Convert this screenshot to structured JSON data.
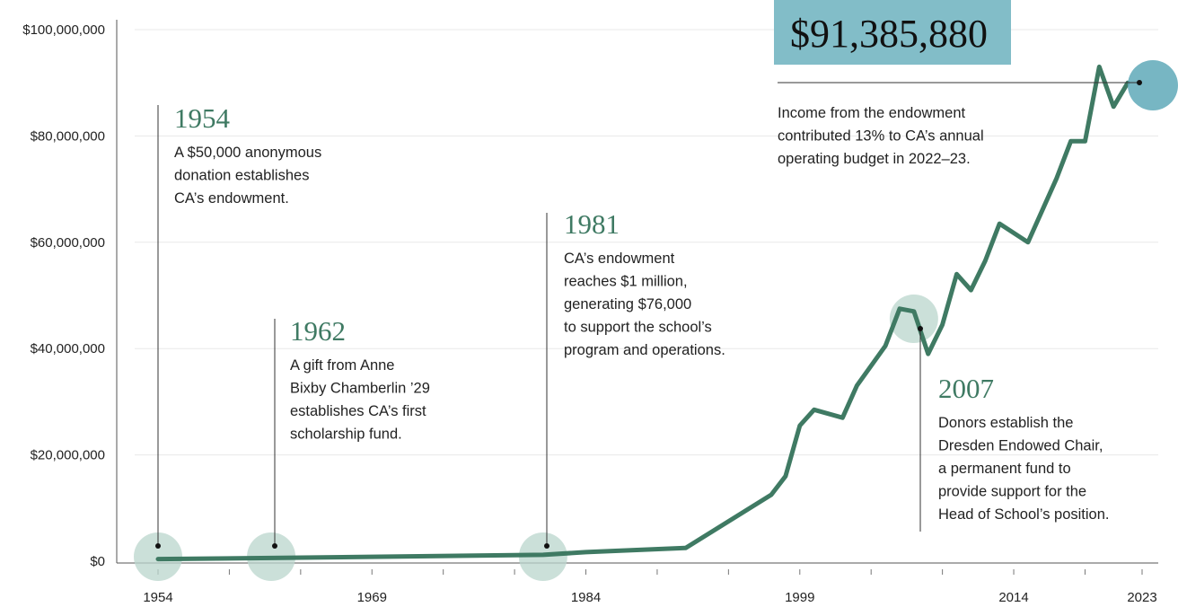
{
  "colors": {
    "line": "#3f7a63",
    "circle": "#b9d5cc",
    "highlight_box": "#82bdc8",
    "highlight_circle": "#5fa9b8",
    "axis": "#555555",
    "grid": "#e8e8e8"
  },
  "chart_data": {
    "type": "line",
    "title": "",
    "xlabel": "",
    "ylabel": "",
    "xlim": [
      1954,
      2023
    ],
    "ylim": [
      0,
      100000000
    ],
    "y_ticks": [
      {
        "value": 0,
        "label": "$0"
      },
      {
        "value": 20000000,
        "label": "$20,000,000"
      },
      {
        "value": 40000000,
        "label": "$40,000,000"
      },
      {
        "value": 60000000,
        "label": "$60,000,000"
      },
      {
        "value": 80000000,
        "label": "$80,000,000"
      },
      {
        "value": 100000000,
        "label": "$100,000,000"
      }
    ],
    "x_ticks": [
      {
        "value": 1954,
        "label": "1954"
      },
      {
        "value": 1969,
        "label": "1969"
      },
      {
        "value": 1984,
        "label": "1984"
      },
      {
        "value": 1999,
        "label": "1999"
      },
      {
        "value": 2014,
        "label": "2014"
      },
      {
        "value": 2023,
        "label": "2023"
      }
    ],
    "series": [
      {
        "points": [
          {
            "x": 1954,
            "y": 400000
          },
          {
            "x": 1962,
            "y": 600000
          },
          {
            "x": 1981,
            "y": 1200000
          },
          {
            "x": 1984,
            "y": 1700000
          },
          {
            "x": 1991,
            "y": 2500000
          },
          {
            "x": 1997,
            "y": 12500000
          },
          {
            "x": 1998,
            "y": 16000000
          },
          {
            "x": 1999,
            "y": 25500000
          },
          {
            "x": 2000,
            "y": 28500000
          },
          {
            "x": 2002,
            "y": 27000000
          },
          {
            "x": 2003,
            "y": 33000000
          },
          {
            "x": 2005,
            "y": 40500000
          },
          {
            "x": 2006,
            "y": 47500000
          },
          {
            "x": 2007,
            "y": 47000000
          },
          {
            "x": 2008,
            "y": 39000000
          },
          {
            "x": 2009,
            "y": 44500000
          },
          {
            "x": 2010,
            "y": 54000000
          },
          {
            "x": 2011,
            "y": 51000000
          },
          {
            "x": 2012,
            "y": 56500000
          },
          {
            "x": 2013,
            "y": 63500000
          },
          {
            "x": 2015,
            "y": 60000000
          },
          {
            "x": 2016,
            "y": 66000000
          },
          {
            "x": 2017,
            "y": 72000000
          },
          {
            "x": 2018,
            "y": 79000000
          },
          {
            "x": 2019,
            "y": 79000000
          },
          {
            "x": 2020,
            "y": 93000000
          },
          {
            "x": 2021,
            "y": 85500000
          },
          {
            "x": 2022,
            "y": 90000000
          }
        ]
      }
    ],
    "callouts": [
      {
        "year": "1954",
        "lines": [
          "A $50,000 anonymous",
          "donation establishes",
          "CA’s endowment."
        ]
      },
      {
        "year": "1962",
        "lines": [
          "A gift from Anne",
          "Bixby Chamberlin ’29",
          "establishes CA’s first",
          "scholarship fund."
        ]
      },
      {
        "year": "1981",
        "lines": [
          "CA’s endowment",
          "reaches $1 million,",
          "generating $76,000",
          "to support the school’s",
          "program and operations."
        ]
      },
      {
        "year": "2007",
        "lines": [
          "Donors establish the",
          "Dresden Endowed Chair,",
          "a permanent fund to",
          "provide support for the",
          "Head of School’s position."
        ]
      }
    ],
    "highlight": {
      "value_label": "$91,385,880",
      "lines": [
        "Income from the endowment",
        "contributed 13% to CA’s annual",
        "operating budget in 2022–23."
      ]
    }
  }
}
